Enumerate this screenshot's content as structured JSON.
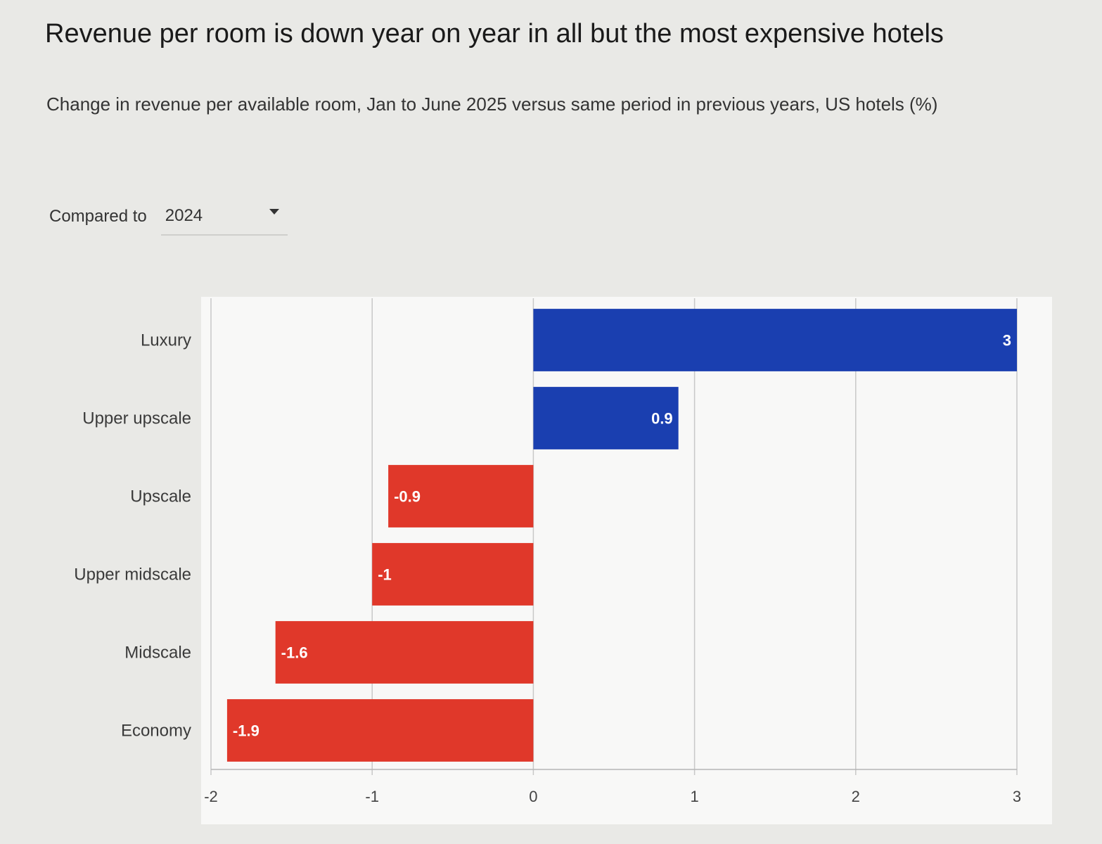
{
  "title": "Revenue per room is down year on year in all but the most expensive hotels",
  "subtitle": "Change in revenue per available room, Jan to June 2025 versus same period in previous years, US hotels (%)",
  "selector": {
    "label": "Compared to",
    "value": "2024"
  },
  "colors": {
    "positive": "#1a3fb0",
    "negative": "#e0382a",
    "grid": "#c8c8c8"
  },
  "chart_data": {
    "type": "bar",
    "orientation": "horizontal",
    "categories": [
      "Luxury",
      "Upper upscale",
      "Upscale",
      "Upper midscale",
      "Midscale",
      "Economy"
    ],
    "values": [
      3,
      0.9,
      -0.9,
      -1,
      -1.6,
      -1.9
    ],
    "data_labels": [
      "3",
      "0.9",
      "-0.9",
      "-1",
      "-1.6",
      "-1.9"
    ],
    "xlim": [
      -2,
      3
    ],
    "xticks": [
      -2,
      -1,
      0,
      1,
      2,
      3
    ],
    "xtick_labels": [
      "-2",
      "-1",
      "0",
      "1",
      "2",
      "3"
    ],
    "grid": true,
    "legend": "none"
  }
}
